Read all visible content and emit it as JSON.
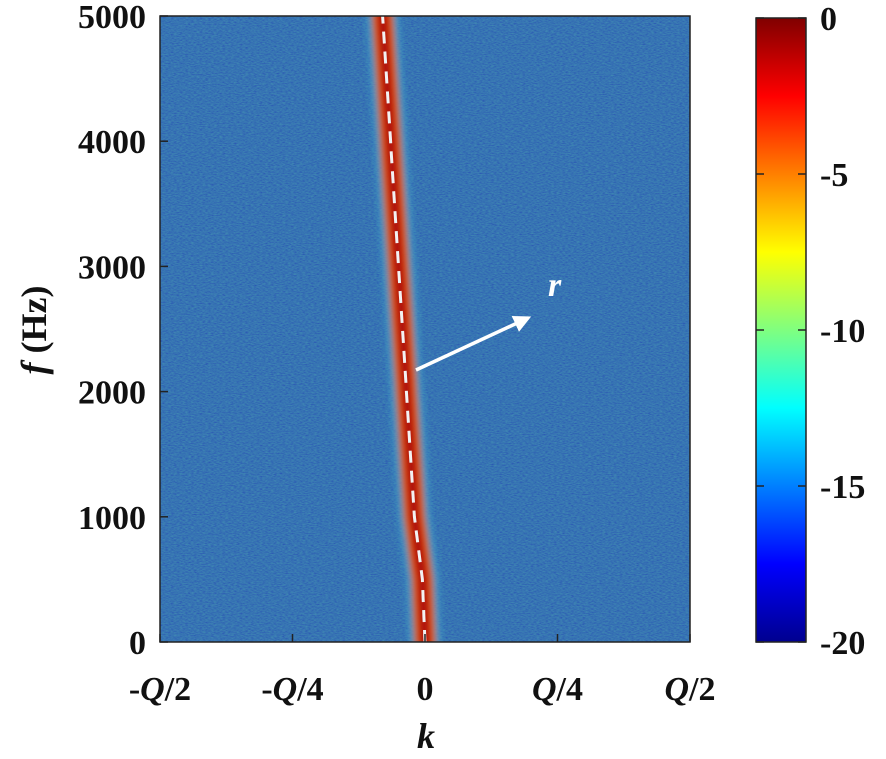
{
  "chart_data": {
    "type": "heatmap",
    "title": "",
    "xlabel": "k",
    "ylabel": "f (Hz)",
    "ylabel_parts": {
      "var": "f",
      "unit": " (Hz)"
    },
    "x_ticks": [
      {
        "pre": "-",
        "var": "Q",
        "post": "/2",
        "value": -0.5
      },
      {
        "pre": "-",
        "var": "Q",
        "post": "/4",
        "value": -0.25
      },
      {
        "pre": "0",
        "var": "",
        "post": "",
        "value": 0
      },
      {
        "pre": "",
        "var": "Q",
        "post": "/4",
        "value": 0.25
      },
      {
        "pre": "",
        "var": "Q",
        "post": "/2",
        "value": 0.5
      }
    ],
    "xlim": [
      -0.5,
      0.5
    ],
    "x_unit_note": "Q",
    "y_ticks": [
      "0",
      "1000",
      "2000",
      "3000",
      "4000",
      "5000"
    ],
    "ylim": [
      0,
      5000
    ],
    "colorbar": {
      "ticks": [
        "0",
        "-5",
        "-10",
        "-15",
        "-20"
      ],
      "range": [
        -20,
        0
      ],
      "colormap": "jet"
    },
    "ridge": {
      "description_points_k": [
        [
          0,
          0
        ],
        [
          -0.005,
          500
        ],
        [
          -0.02,
          1000
        ],
        [
          -0.035,
          2000
        ],
        [
          -0.05,
          3000
        ],
        [
          -0.065,
          4000
        ],
        [
          -0.08,
          5000
        ]
      ],
      "peak_level": 0,
      "background_level": -16
    },
    "annotation": {
      "label": "r",
      "color": "#ffffff"
    },
    "dashed_line_color": "#f2f2f2"
  }
}
